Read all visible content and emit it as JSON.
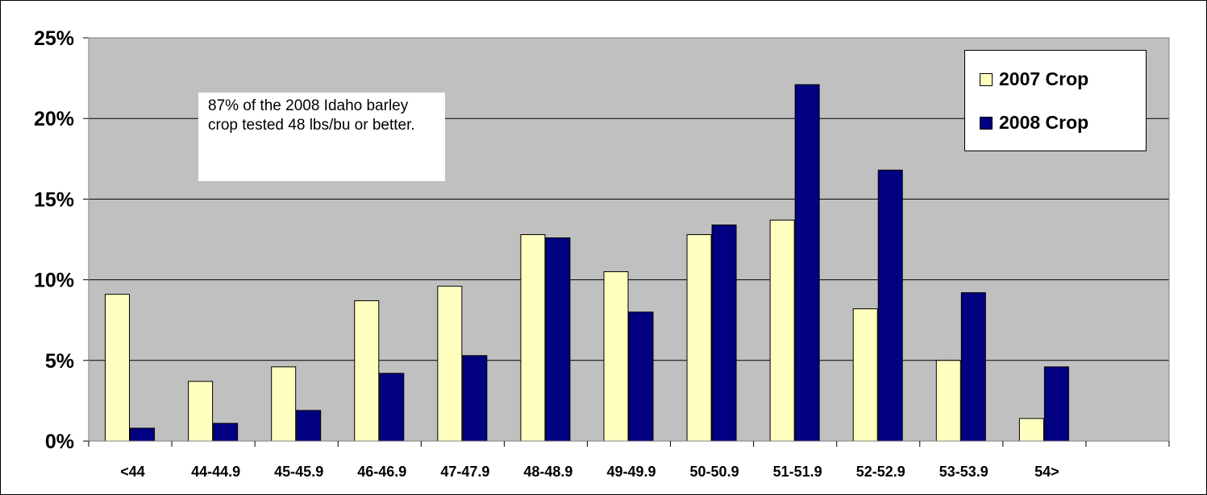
{
  "chart_data": {
    "type": "bar",
    "title": "",
    "xlabel": "",
    "ylabel": "",
    "categories": [
      "<44",
      "44-44.9",
      "45-45.9",
      "46-46.9",
      "47-47.9",
      "48-48.9",
      "49-49.9",
      "50-50.9",
      "51-51.9",
      "52-52.9",
      "53-53.9",
      "54>",
      ""
    ],
    "series": [
      {
        "name": "2007 Crop",
        "color": "#ffffc0",
        "values": [
          9.1,
          3.7,
          4.6,
          8.7,
          9.6,
          12.8,
          10.5,
          12.8,
          13.7,
          8.2,
          5.0,
          1.4,
          null
        ]
      },
      {
        "name": "2008 Crop",
        "color": "#000080",
        "values": [
          0.8,
          1.1,
          1.9,
          4.2,
          5.3,
          12.6,
          8.0,
          13.4,
          22.1,
          16.8,
          9.2,
          4.6,
          null
        ]
      }
    ],
    "ylim": [
      0,
      25
    ],
    "yticks": [
      "0%",
      "5%",
      "10%",
      "15%",
      "20%",
      "25%"
    ],
    "plot_background": "#c0c0c0",
    "gridlines": true,
    "legend_position": "top-right",
    "annotation": "87% of the 2008 Idaho barley crop tested 48 lbs/bu or better."
  },
  "legend": {
    "items": [
      {
        "label": "2007 Crop"
      },
      {
        "label": "2008 Crop"
      }
    ]
  },
  "annotation": {
    "text": "87% of the 2008 Idaho barley crop tested 48 lbs/bu or better."
  }
}
